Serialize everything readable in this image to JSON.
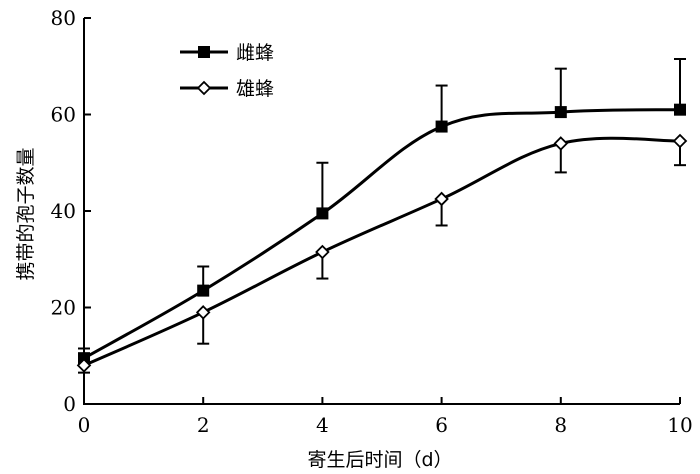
{
  "chart_data": {
    "type": "line",
    "x": [
      0,
      2,
      4,
      6,
      8,
      10
    ],
    "xlabel": "寄生后时间（d）",
    "ylabel": "携带的孢子数量",
    "xlim": [
      0,
      10
    ],
    "ylim": [
      0,
      80
    ],
    "xticks": [
      "0",
      "2",
      "4",
      "6",
      "8",
      "10"
    ],
    "yticks": [
      "0",
      "20",
      "40",
      "60",
      "80"
    ],
    "grid": false,
    "legend_position": "top-left",
    "series": [
      {
        "name": "雌蜂",
        "marker": "filled-square",
        "values": [
          9.5,
          23.5,
          39.5,
          57.5,
          60.5,
          61
        ],
        "error_upper": [
          2,
          5,
          10.5,
          8.5,
          9,
          10.5
        ],
        "error_lower": [
          0,
          0,
          0,
          0,
          0,
          0
        ]
      },
      {
        "name": "雄蜂",
        "marker": "open-diamond",
        "values": [
          8,
          19,
          31.5,
          42.5,
          54,
          54.5
        ],
        "error_upper": [
          0,
          0,
          0,
          0,
          0,
          0
        ],
        "error_lower": [
          1.5,
          6.5,
          5.5,
          5.5,
          6,
          5
        ]
      }
    ]
  }
}
